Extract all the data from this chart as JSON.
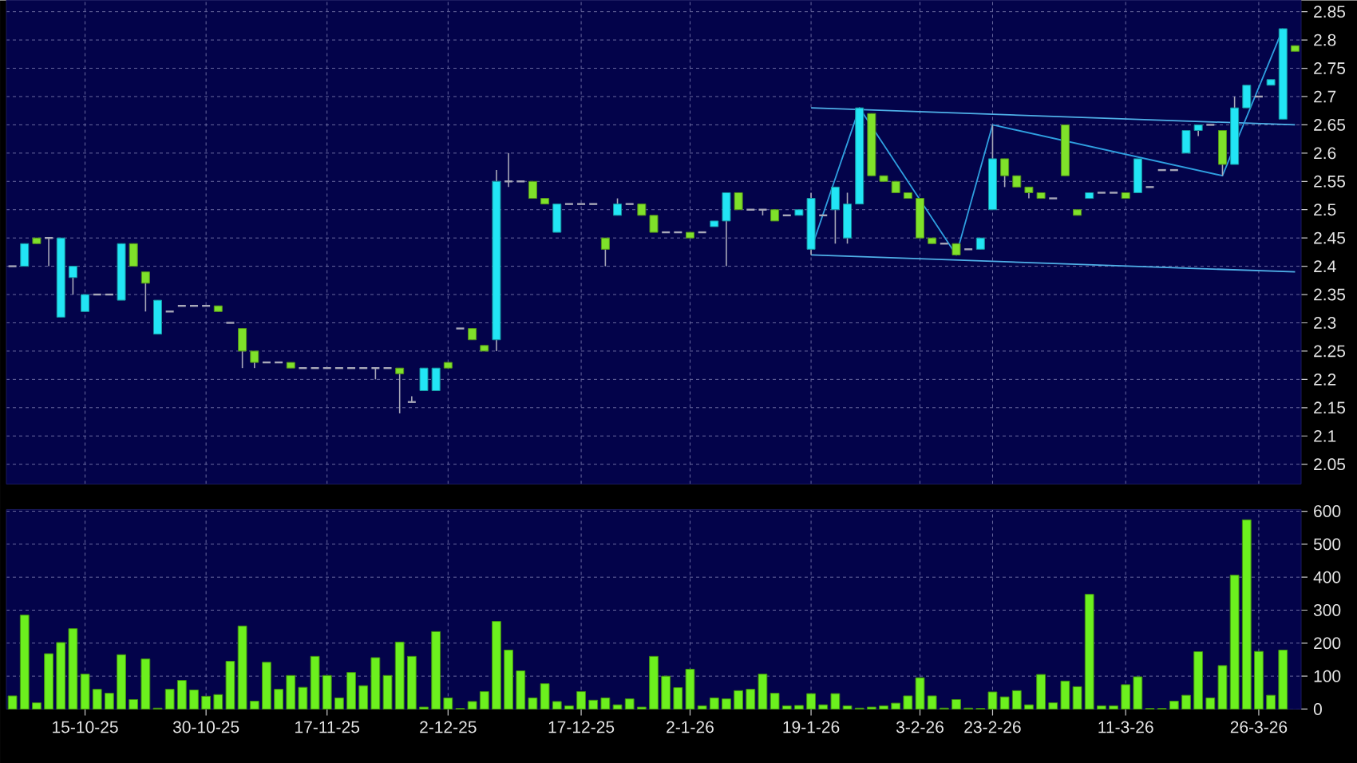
{
  "chart_data": [
    {
      "type": "candlestick",
      "categories": [
        null,
        null,
        null,
        null,
        null,
        null,
        null,
        null,
        null,
        null,
        null,
        null,
        null,
        null,
        null,
        null,
        null,
        null,
        null,
        null,
        null,
        null,
        null,
        null,
        null,
        null,
        null,
        null,
        null,
        null,
        null,
        null,
        null,
        null,
        null,
        null,
        null,
        null,
        null,
        null,
        null,
        null,
        null,
        null,
        null,
        null,
        null,
        null,
        null,
        null,
        null,
        null,
        null,
        null,
        null,
        null,
        null,
        null,
        null,
        null,
        null,
        null,
        null,
        null,
        null,
        null,
        null,
        null,
        null,
        null,
        null,
        null,
        null,
        null,
        null,
        null,
        null,
        null,
        null,
        null,
        null,
        null,
        null,
        null,
        null,
        null,
        null,
        null,
        null,
        null,
        null,
        null,
        null,
        null,
        null,
        null,
        null,
        null,
        null,
        null,
        null,
        null,
        null,
        null,
        null,
        null,
        null
      ],
      "ohlc": [
        [
          2.4,
          2.4,
          2.4,
          2.4
        ],
        [
          2.4,
          2.44,
          2.4,
          2.44
        ],
        [
          2.45,
          2.45,
          2.44,
          2.44
        ],
        [
          2.45,
          2.45,
          2.4,
          2.45
        ],
        [
          2.31,
          2.45,
          2.31,
          2.45
        ],
        [
          2.38,
          2.4,
          2.35,
          2.4
        ],
        [
          2.32,
          2.35,
          2.32,
          2.35
        ],
        [
          2.35,
          2.35,
          2.35,
          2.35
        ],
        [
          2.35,
          2.35,
          2.35,
          2.35
        ],
        [
          2.34,
          2.44,
          2.34,
          2.44
        ],
        [
          2.44,
          2.44,
          2.4,
          2.4
        ],
        [
          2.39,
          2.39,
          2.32,
          2.37
        ],
        [
          2.28,
          2.34,
          2.28,
          2.34
        ],
        [
          2.32,
          2.32,
          2.32,
          2.32
        ],
        [
          2.33,
          2.33,
          2.33,
          2.33
        ],
        [
          2.33,
          2.33,
          2.33,
          2.33
        ],
        [
          2.33,
          2.33,
          2.33,
          2.33
        ],
        [
          2.33,
          2.33,
          2.32,
          2.32
        ],
        [
          2.3,
          2.3,
          2.3,
          2.3
        ],
        [
          2.29,
          2.29,
          2.22,
          2.25
        ],
        [
          2.25,
          2.25,
          2.22,
          2.23
        ],
        [
          2.23,
          2.23,
          2.23,
          2.23
        ],
        [
          2.23,
          2.23,
          2.23,
          2.23
        ],
        [
          2.23,
          2.23,
          2.22,
          2.22
        ],
        [
          2.22,
          2.22,
          2.22,
          2.22
        ],
        [
          2.22,
          2.22,
          2.22,
          2.22
        ],
        [
          2.22,
          2.22,
          2.22,
          2.22
        ],
        [
          2.22,
          2.22,
          2.22,
          2.22
        ],
        [
          2.22,
          2.22,
          2.22,
          2.22
        ],
        [
          2.22,
          2.22,
          2.22,
          2.22
        ],
        [
          2.22,
          2.22,
          2.2,
          2.22
        ],
        [
          2.22,
          2.22,
          2.22,
          2.22
        ],
        [
          2.22,
          2.22,
          2.14,
          2.21
        ],
        [
          2.16,
          2.17,
          2.16,
          2.16
        ],
        [
          2.18,
          2.22,
          2.18,
          2.22
        ],
        [
          2.18,
          2.22,
          2.18,
          2.22
        ],
        [
          2.23,
          2.23,
          2.22,
          2.22
        ],
        [
          2.29,
          2.29,
          2.29,
          2.29
        ],
        [
          2.29,
          2.29,
          2.27,
          2.27
        ],
        [
          2.26,
          2.26,
          2.25,
          2.25
        ],
        [
          2.27,
          2.57,
          2.25,
          2.55
        ],
        [
          2.55,
          2.6,
          2.54,
          2.55
        ],
        [
          2.55,
          2.55,
          2.55,
          2.55
        ],
        [
          2.55,
          2.55,
          2.52,
          2.52
        ],
        [
          2.52,
          2.52,
          2.51,
          2.51
        ],
        [
          2.46,
          2.51,
          2.46,
          2.51
        ],
        [
          2.51,
          2.51,
          2.51,
          2.51
        ],
        [
          2.51,
          2.51,
          2.51,
          2.51
        ],
        [
          2.51,
          2.51,
          2.51,
          2.51
        ],
        [
          2.45,
          2.45,
          2.4,
          2.43
        ],
        [
          2.49,
          2.52,
          2.49,
          2.51
        ],
        [
          2.51,
          2.51,
          2.51,
          2.51
        ],
        [
          2.51,
          2.51,
          2.49,
          2.49
        ],
        [
          2.49,
          2.49,
          2.46,
          2.46
        ],
        [
          2.46,
          2.46,
          2.46,
          2.46
        ],
        [
          2.46,
          2.46,
          2.46,
          2.46
        ],
        [
          2.46,
          2.46,
          2.45,
          2.45
        ],
        [
          2.46,
          2.46,
          2.46,
          2.46
        ],
        [
          2.47,
          2.48,
          2.47,
          2.48
        ],
        [
          2.48,
          2.53,
          2.4,
          2.53
        ],
        [
          2.53,
          2.53,
          2.5,
          2.5
        ],
        [
          2.5,
          2.5,
          2.5,
          2.5
        ],
        [
          2.5,
          2.5,
          2.49,
          2.5
        ],
        [
          2.5,
          2.5,
          2.48,
          2.48
        ],
        [
          2.49,
          2.49,
          2.49,
          2.49
        ],
        [
          2.49,
          2.5,
          2.49,
          2.5
        ],
        [
          2.43,
          2.53,
          2.42,
          2.52
        ],
        [
          2.49,
          2.49,
          2.49,
          2.49
        ],
        [
          2.5,
          2.54,
          2.44,
          2.54
        ],
        [
          2.45,
          2.53,
          2.44,
          2.51
        ],
        [
          2.51,
          2.68,
          2.51,
          2.68
        ],
        [
          2.67,
          2.67,
          2.56,
          2.56
        ],
        [
          2.56,
          2.56,
          2.55,
          2.55
        ],
        [
          2.55,
          2.55,
          2.53,
          2.53
        ],
        [
          2.53,
          2.53,
          2.52,
          2.52
        ],
        [
          2.52,
          2.52,
          2.45,
          2.45
        ],
        [
          2.45,
          2.45,
          2.44,
          2.44
        ],
        [
          2.44,
          2.44,
          2.44,
          2.44
        ],
        [
          2.44,
          2.44,
          2.42,
          2.42
        ],
        [
          2.43,
          2.43,
          2.43,
          2.43
        ],
        [
          2.43,
          2.45,
          2.43,
          2.45
        ],
        [
          2.5,
          2.65,
          2.5,
          2.59
        ],
        [
          2.59,
          2.59,
          2.54,
          2.56
        ],
        [
          2.56,
          2.56,
          2.54,
          2.54
        ],
        [
          2.54,
          2.54,
          2.52,
          2.53
        ],
        [
          2.53,
          2.53,
          2.52,
          2.52
        ],
        [
          2.52,
          2.52,
          2.52,
          2.52
        ],
        [
          2.65,
          2.65,
          2.56,
          2.56
        ],
        [
          2.5,
          2.5,
          2.49,
          2.49
        ],
        [
          2.52,
          2.53,
          2.52,
          2.53
        ],
        [
          2.53,
          2.53,
          2.53,
          2.53
        ],
        [
          2.53,
          2.53,
          2.53,
          2.53
        ],
        [
          2.53,
          2.53,
          2.52,
          2.52
        ],
        [
          2.53,
          2.59,
          2.53,
          2.59
        ],
        [
          2.54,
          2.54,
          2.54,
          2.54
        ],
        [
          2.57,
          2.57,
          2.57,
          2.57
        ],
        [
          2.57,
          2.57,
          2.57,
          2.57
        ],
        [
          2.6,
          2.64,
          2.6,
          2.64
        ],
        [
          2.64,
          2.65,
          2.63,
          2.65
        ],
        [
          2.65,
          2.65,
          2.65,
          2.65
        ],
        [
          2.64,
          2.64,
          2.56,
          2.58
        ],
        [
          2.58,
          2.7,
          2.58,
          2.68
        ],
        [
          2.68,
          2.72,
          2.68,
          2.72
        ],
        [
          2.7,
          2.7,
          2.7,
          2.7
        ],
        [
          2.72,
          2.73,
          2.72,
          2.73
        ],
        [
          2.66,
          2.82,
          2.66,
          2.82
        ],
        [
          2.79,
          2.79,
          2.78,
          2.78
        ]
      ],
      "colors": [
        "#a8a8b8",
        "#22e5f5",
        "#7fe12a",
        "#a8a8b8",
        "#22e5f5",
        "#22e5f5",
        "#22e5f5",
        "#a8a8b8",
        "#a8a8b8",
        "#22e5f5",
        "#7fe12a",
        "#7fe12a",
        "#22e5f5",
        "#a8a8b8",
        "#a8a8b8",
        "#a8a8b8",
        "#a8a8b8",
        "#7fe12a",
        "#a8a8b8",
        "#7fe12a",
        "#7fe12a",
        "#a8a8b8",
        "#a8a8b8",
        "#7fe12a",
        "#a8a8b8",
        "#a8a8b8",
        "#a8a8b8",
        "#a8a8b8",
        "#a8a8b8",
        "#a8a8b8",
        "#a8a8b8",
        "#a8a8b8",
        "#7fe12a",
        "#a8a8b8",
        "#22e5f5",
        "#22e5f5",
        "#7fe12a",
        "#a8a8b8",
        "#7fe12a",
        "#7fe12a",
        "#22e5f5",
        "#a8a8b8",
        "#a8a8b8",
        "#7fe12a",
        "#7fe12a",
        "#22e5f5",
        "#a8a8b8",
        "#a8a8b8",
        "#a8a8b8",
        "#7fe12a",
        "#22e5f5",
        "#a8a8b8",
        "#7fe12a",
        "#7fe12a",
        "#a8a8b8",
        "#a8a8b8",
        "#7fe12a",
        "#a8a8b8",
        "#22e5f5",
        "#22e5f5",
        "#7fe12a",
        "#a8a8b8",
        "#a8a8b8",
        "#7fe12a",
        "#a8a8b8",
        "#22e5f5",
        "#22e5f5",
        "#a8a8b8",
        "#22e5f5",
        "#22e5f5",
        "#22e5f5",
        "#7fe12a",
        "#7fe12a",
        "#7fe12a",
        "#7fe12a",
        "#7fe12a",
        "#7fe12a",
        "#a8a8b8",
        "#7fe12a",
        "#a8a8b8",
        "#22e5f5",
        "#22e5f5",
        "#7fe12a",
        "#7fe12a",
        "#7fe12a",
        "#7fe12a",
        "#a8a8b8",
        "#7fe12a",
        "#7fe12a",
        "#22e5f5",
        "#a8a8b8",
        "#a8a8b8",
        "#7fe12a",
        "#22e5f5",
        "#a8a8b8",
        "#a8a8b8",
        "#a8a8b8",
        "#22e5f5",
        "#22e5f5",
        "#a8a8b8",
        "#7fe12a",
        "#22e5f5",
        "#22e5f5",
        "#a8a8b8",
        "#22e5f5",
        "#22e5f5",
        "#7fe12a"
      ],
      "series": [
        {
          "type": "line",
          "color": "#4fb0e8",
          "values": [
            null,
            null,
            null,
            null,
            null,
            null,
            null,
            null,
            null,
            null,
            null,
            null,
            null,
            null,
            null,
            null,
            null,
            null,
            null,
            null,
            null,
            null,
            null,
            null,
            null,
            null,
            null,
            null,
            null,
            null,
            null,
            null,
            null,
            null,
            null,
            null,
            null,
            null,
            null,
            null,
            null,
            null,
            null,
            null,
            null,
            null,
            null,
            null,
            null,
            null,
            null,
            null,
            null,
            null,
            null,
            null,
            null,
            null,
            null,
            null,
            null,
            null,
            null,
            null,
            null,
            null,
            2.68,
            null,
            null,
            null,
            null,
            null,
            null,
            null,
            null,
            null,
            null,
            null,
            null,
            null,
            null,
            null,
            null,
            null,
            null,
            null,
            null,
            null,
            null,
            null,
            null,
            null,
            null,
            null,
            null,
            null,
            null,
            null,
            null,
            null,
            null,
            null,
            null,
            null,
            null,
            null,
            2.65
          ]
        },
        {
          "type": "line",
          "color": "#4fb0e8",
          "values": [
            null,
            null,
            null,
            null,
            null,
            null,
            null,
            null,
            null,
            null,
            null,
            null,
            null,
            null,
            null,
            null,
            null,
            null,
            null,
            null,
            null,
            null,
            null,
            null,
            null,
            null,
            null,
            null,
            null,
            null,
            null,
            null,
            null,
            null,
            null,
            null,
            null,
            null,
            null,
            null,
            null,
            null,
            null,
            null,
            null,
            null,
            null,
            null,
            null,
            null,
            null,
            null,
            null,
            null,
            null,
            null,
            null,
            null,
            null,
            null,
            null,
            null,
            null,
            null,
            null,
            null,
            2.42,
            null,
            null,
            null,
            null,
            null,
            null,
            null,
            null,
            null,
            null,
            null,
            null,
            null,
            null,
            null,
            null,
            null,
            null,
            null,
            null,
            null,
            null,
            null,
            null,
            null,
            null,
            null,
            null,
            null,
            null,
            null,
            null,
            null,
            null,
            null,
            null,
            null,
            null,
            null,
            2.39
          ]
        },
        {
          "type": "line",
          "color": "#2f9fe0",
          "values": [
            null,
            null,
            null,
            null,
            null,
            null,
            null,
            null,
            null,
            null,
            null,
            null,
            null,
            null,
            null,
            null,
            null,
            null,
            null,
            null,
            null,
            null,
            null,
            null,
            null,
            null,
            null,
            null,
            null,
            null,
            null,
            null,
            null,
            null,
            null,
            null,
            null,
            null,
            null,
            null,
            null,
            null,
            null,
            null,
            null,
            null,
            null,
            null,
            null,
            null,
            null,
            null,
            null,
            null,
            null,
            null,
            null,
            null,
            null,
            null,
            null,
            null,
            null,
            null,
            null,
            null,
            2.43,
            null,
            null,
            null,
            2.68,
            null,
            null,
            null,
            null,
            null,
            null,
            null,
            2.42,
            null,
            null,
            2.65,
            null,
            null,
            null,
            null,
            null,
            null,
            null,
            null,
            null,
            null,
            null,
            null,
            null,
            null,
            null,
            null,
            null,
            null,
            2.56,
            null,
            null,
            null,
            null,
            2.82,
            null
          ]
        }
      ],
      "ylim": [
        2.015,
        2.87
      ],
      "yticks": [
        2.05,
        2.1,
        2.15,
        2.2,
        2.25,
        2.3,
        2.35,
        2.4,
        2.45,
        2.5,
        2.55,
        2.6,
        2.65,
        2.7,
        2.75,
        2.8,
        2.85
      ],
      "grid": true,
      "tick_labels": "y"
    },
    {
      "type": "bar",
      "color": "#6cf01e",
      "categories": [
        null,
        null,
        null,
        null,
        null,
        null,
        "15-10-25",
        null,
        null,
        null,
        null,
        null,
        null,
        null,
        null,
        null,
        "30-10-25",
        null,
        null,
        null,
        null,
        null,
        null,
        null,
        null,
        null,
        "17-11-25",
        null,
        null,
        null,
        null,
        null,
        null,
        null,
        null,
        null,
        "2-12-25",
        null,
        null,
        null,
        null,
        null,
        null,
        null,
        null,
        null,
        null,
        "17-12-25",
        null,
        null,
        null,
        null,
        null,
        null,
        null,
        null,
        "2-1-26",
        null,
        null,
        null,
        null,
        null,
        null,
        null,
        null,
        null,
        "19-1-26",
        null,
        null,
        null,
        null,
        null,
        null,
        null,
        null,
        "3-2-26",
        null,
        null,
        null,
        null,
        null,
        "23-2-26",
        null,
        null,
        null,
        null,
        null,
        null,
        null,
        null,
        null,
        null,
        "11-3-26",
        null,
        null,
        null,
        null,
        null,
        null,
        null,
        null,
        null,
        null,
        "26-3-26",
        null,
        null,
        null
      ],
      "values": [
        40,
        285,
        19,
        168,
        202,
        244,
        106,
        60,
        48,
        165,
        29,
        152,
        3,
        60,
        87,
        58,
        39,
        44,
        145,
        252,
        24,
        142,
        60,
        102,
        66,
        160,
        102,
        34,
        111,
        71,
        156,
        102,
        203,
        160,
        6,
        235,
        34,
        2,
        23,
        53,
        266,
        179,
        116,
        34,
        77,
        23,
        10,
        53,
        27,
        34,
        13,
        31,
        6,
        160,
        100,
        65,
        121,
        10,
        34,
        31,
        56,
        60,
        106,
        48,
        10,
        11,
        47,
        13,
        47,
        10,
        3,
        6,
        10,
        18,
        40,
        95,
        40,
        3,
        29,
        3,
        2,
        52,
        37,
        56,
        13,
        105,
        19,
        85,
        68,
        348,
        10,
        10,
        74,
        98,
        2,
        2,
        24,
        42,
        174,
        34,
        132,
        406,
        574,
        175,
        42,
        179,
        null
      ],
      "ylim": [
        0,
        605
      ],
      "yticks": [
        0,
        100,
        200,
        300,
        400,
        500,
        600
      ],
      "grid": true
    }
  ]
}
